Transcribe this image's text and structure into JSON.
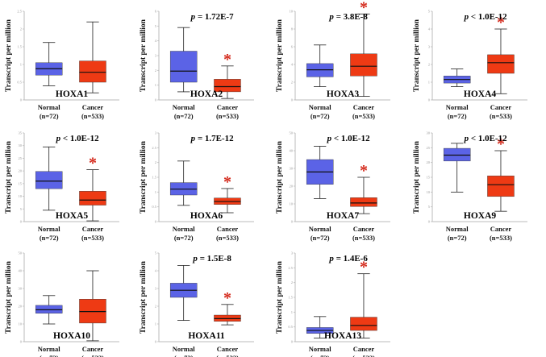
{
  "chart_data": {
    "type": "box",
    "y_axis_label": "Transcript per million",
    "star_symbol": "*",
    "colors": {
      "normal": "#5b63e6",
      "cancer": "#ee3a14",
      "star": "#d42a1c",
      "axis": "#bbbbbb"
    },
    "categories": [
      {
        "name": "Normal",
        "n": "(n=72)"
      },
      {
        "name": "Cancer",
        "n": "(n=533)"
      }
    ],
    "panels": [
      {
        "gene": "HOXA1",
        "p_prefix": "",
        "p_value": "",
        "significant": false,
        "ticks": [
          "0",
          "0.5",
          "1",
          "1.5",
          "2",
          "2.5"
        ],
        "ymax": 2.5,
        "normal": {
          "min": 0.4,
          "q1": 0.7,
          "median": 0.88,
          "q3": 1.05,
          "max": 1.62
        },
        "cancer": {
          "min": 0.2,
          "q1": 0.5,
          "median": 0.78,
          "q3": 1.1,
          "max": 2.2
        }
      },
      {
        "gene": "HOXA2",
        "p_prefix": "p = ",
        "p_value": "1.72E-7",
        "significant": true,
        "ticks": [
          "0",
          "1",
          "2",
          "3",
          "4",
          "5",
          "6"
        ],
        "ymax": 6,
        "normal": {
          "min": 0.55,
          "q1": 1.2,
          "median": 1.95,
          "q3": 3.3,
          "max": 4.9
        },
        "cancer": {
          "min": 0.1,
          "q1": 0.55,
          "median": 0.9,
          "q3": 1.4,
          "max": 2.3
        }
      },
      {
        "gene": "HOXA3",
        "p_prefix": "p = ",
        "p_value": "3.8E-8",
        "significant": true,
        "ticks": [
          "0",
          "2",
          "4",
          "6",
          "8",
          "10"
        ],
        "ymax": 10,
        "normal": {
          "min": 1.5,
          "q1": 2.6,
          "median": 3.4,
          "q3": 4.1,
          "max": 6.2
        },
        "cancer": {
          "min": 0.4,
          "q1": 2.7,
          "median": 3.8,
          "q3": 5.2,
          "max": 9.7
        }
      },
      {
        "gene": "HOXA4",
        "p_prefix": "p < ",
        "p_value": "1.0E-12",
        "significant": true,
        "ticks": [
          "0",
          "1",
          "2",
          "3",
          "4",
          "5"
        ],
        "ymax": 5,
        "normal": {
          "min": 0.75,
          "q1": 0.95,
          "median": 1.15,
          "q3": 1.35,
          "max": 1.75
        },
        "cancer": {
          "min": 0.35,
          "q1": 1.5,
          "median": 2.1,
          "q3": 2.55,
          "max": 4.0
        }
      },
      {
        "gene": "HOXA5",
        "p_prefix": "p < ",
        "p_value": "1.0E-12",
        "significant": true,
        "ticks": [
          "0",
          "5",
          "10",
          "15",
          "20",
          "25",
          "30",
          "35"
        ],
        "ymax": 35,
        "normal": {
          "min": 4.5,
          "q1": 13,
          "median": 16,
          "q3": 19.8,
          "max": 29.5
        },
        "cancer": {
          "min": 0.3,
          "q1": 6.5,
          "median": 8.5,
          "q3": 12,
          "max": 20.5
        }
      },
      {
        "gene": "HOXA6",
        "p_prefix": "p = ",
        "p_value": "1.7E-12",
        "significant": true,
        "ticks": [
          "0",
          "0.5",
          "1",
          "1.5",
          "2",
          "2.5",
          "3"
        ],
        "ymax": 3,
        "normal": {
          "min": 0.55,
          "q1": 0.9,
          "median": 1.1,
          "q3": 1.32,
          "max": 2.05
        },
        "cancer": {
          "min": 0.3,
          "q1": 0.58,
          "median": 0.68,
          "q3": 0.8,
          "max": 1.12
        }
      },
      {
        "gene": "HOXA7",
        "p_prefix": "p < ",
        "p_value": "1.0E-12",
        "significant": true,
        "ticks": [
          "0",
          "10",
          "20",
          "30",
          "40",
          "50"
        ],
        "ymax": 50,
        "normal": {
          "min": 13,
          "q1": 21,
          "median": 28,
          "q3": 35,
          "max": 42.5
        },
        "cancer": {
          "min": 4.5,
          "q1": 8.5,
          "median": 10.5,
          "q3": 13.5,
          "max": 25
        }
      },
      {
        "gene": "HOXA9",
        "p_prefix": "p < ",
        "p_value": "1.0E-12",
        "significant": true,
        "ticks": [
          "0",
          "5",
          "10",
          "15",
          "20",
          "25",
          "30"
        ],
        "ymax": 30,
        "normal": {
          "min": 10,
          "q1": 20.5,
          "median": 22.5,
          "q3": 24.8,
          "max": 26.5
        },
        "cancer": {
          "min": 3.5,
          "q1": 8.5,
          "median": 12.5,
          "q3": 15.5,
          "max": 24
        }
      },
      {
        "gene": "HOXA10",
        "p_prefix": "",
        "p_value": "",
        "significant": false,
        "ticks": [
          "0",
          "10",
          "20",
          "30",
          "40",
          "50"
        ],
        "ymax": 50,
        "normal": {
          "min": 10,
          "q1": 16,
          "median": 18,
          "q3": 20.5,
          "max": 26
        },
        "cancer": {
          "min": 0.5,
          "q1": 10.5,
          "median": 17,
          "q3": 24,
          "max": 40
        }
      },
      {
        "gene": "HOXA11",
        "p_prefix": "p = ",
        "p_value": "1.5E-8",
        "significant": true,
        "ticks": [
          "0",
          "1",
          "2",
          "3",
          "4",
          "5"
        ],
        "ymax": 5,
        "normal": {
          "min": 1.2,
          "q1": 2.5,
          "median": 2.9,
          "q3": 3.3,
          "max": 4.3
        },
        "cancer": {
          "min": 0.95,
          "q1": 1.15,
          "median": 1.3,
          "q3": 1.5,
          "max": 2.1
        }
      },
      {
        "gene": "HOXA13",
        "p_prefix": "p = ",
        "p_value": "1.4E-6",
        "significant": true,
        "ticks": [
          "0",
          "0.5",
          "1",
          "1.5",
          "2",
          "2.5",
          "3"
        ],
        "ymax": 3,
        "normal": {
          "min": 0.12,
          "q1": 0.28,
          "median": 0.38,
          "q3": 0.48,
          "max": 0.85
        },
        "cancer": {
          "min": 0.12,
          "q1": 0.38,
          "median": 0.55,
          "q3": 0.83,
          "max": 2.3
        }
      }
    ]
  }
}
